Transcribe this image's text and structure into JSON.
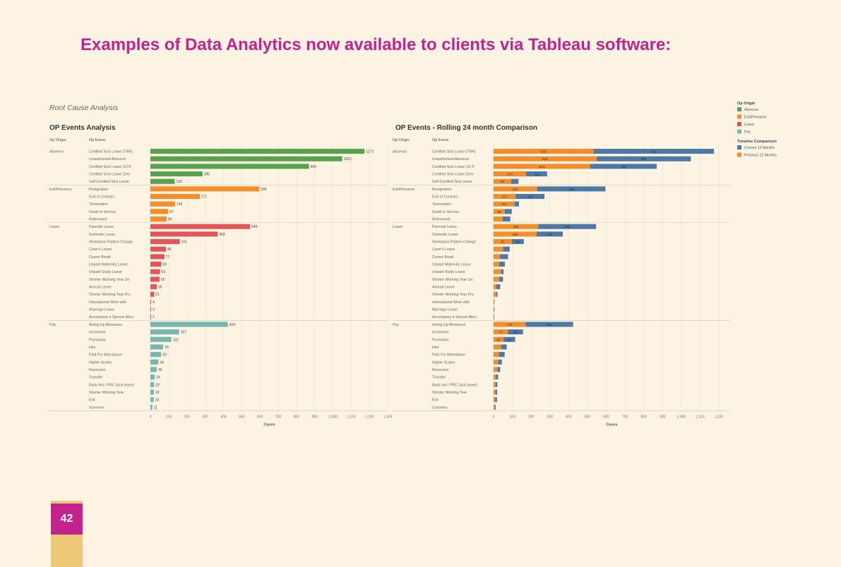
{
  "page": {
    "heading": "Examples of Data Analytics now available to clients via Tableau software:",
    "page_number": "42"
  },
  "dashboard": {
    "title": "Root Cause Analysis",
    "colors": {
      "Absence": "#59a14f",
      "Exit/Pensions": "#f28e2b",
      "Leave": "#e15759",
      "Pay": "#76b7b2",
      "current": "#4e79a7",
      "previous": "#f28e2b"
    }
  },
  "legends": [
    {
      "title": "Op Origin",
      "items": [
        {
          "label": "Absence",
          "color": "#59a14f"
        },
        {
          "label": "Exit/Pensions",
          "color": "#f28e2b"
        },
        {
          "label": "Leave",
          "color": "#e15759"
        },
        {
          "label": "Pay",
          "color": "#76b7b2"
        }
      ]
    },
    {
      "title": "Timeline Comparison",
      "items": [
        {
          "label": "Current 12 Months",
          "color": "#4e79a7"
        },
        {
          "label": "Previous 12 Months",
          "color": "#f28e2b"
        }
      ]
    }
  ],
  "chart_data": [
    {
      "type": "bar",
      "orientation": "horizontal",
      "title": "OP Events Analysis",
      "row_headers": [
        "Op Origin",
        "Op Event"
      ],
      "xlabel": "Cases",
      "xlim": [
        0,
        1300
      ],
      "xticks": [
        "0",
        "100",
        "200",
        "300",
        "400",
        "500",
        "600",
        "700",
        "800",
        "900",
        "1,000",
        "1,100",
        "1,200",
        "1,300"
      ],
      "groups": [
        {
          "origin": "Absence",
          "events": [
            {
              "label": "Certified Sick Leave (TRR)",
              "value": 1173
            },
            {
              "label": "Unauthorised Absence",
              "value": 1051
            },
            {
              "label": "Certified Sick Leave 1/2 P.",
              "value": 869
            },
            {
              "label": "Certified Sick Leave Zero",
              "value": 285
            },
            {
              "label": "Self-Certified Sick Leave",
              "value": 133
            }
          ]
        },
        {
          "origin": "Exit/Pensions",
          "events": [
            {
              "label": "Resignation",
              "value": 596
            },
            {
              "label": "End of Contract",
              "value": 271
            },
            {
              "label": "Termination",
              "value": 135
            },
            {
              "label": "Death in Service",
              "value": 97
            },
            {
              "label": "Retirement",
              "value": 89
            }
          ]
        },
        {
          "origin": "Leave",
          "events": [
            {
              "label": "Parental Leave",
              "value": 546
            },
            {
              "label": "Domestic Leave",
              "value": 369
            },
            {
              "label": "Workplace Pattern Change",
              "value": 161
            },
            {
              "label": "Carer's Leave",
              "value": 86
            },
            {
              "label": "Career Break",
              "value": 77
            },
            {
              "label": "Unpaid Maternity Leave",
              "value": 60
            },
            {
              "label": "Unpaid Study Leave",
              "value": 53
            },
            {
              "label": "Shorter Working Year Un.",
              "value": 50
            },
            {
              "label": "Annual Leave",
              "value": 35
            },
            {
              "label": "Shorter Working Year Pro.",
              "value": 21
            },
            {
              "label": "International Work with",
              "value": 4
            },
            {
              "label": "Marriage Leave",
              "value": 3
            },
            {
              "label": "Accompany a Spouse Abro.",
              "value": 2
            }
          ]
        },
        {
          "origin": "Pay",
          "events": [
            {
              "label": "Acting Up Allowance",
              "value": 424
            },
            {
              "label": "Increment",
              "value": 157
            },
            {
              "label": "Promotion",
              "value": 115
            },
            {
              "label": "Hire",
              "value": 70
            },
            {
              "label": "Paid For Attendance",
              "value": 59
            },
            {
              "label": "Higher Scales",
              "value": 44
            },
            {
              "label": "Reversion",
              "value": 35
            },
            {
              "label": "Transfer",
              "value": 24
            },
            {
              "label": "Bank Hol / PRC (sick leave)",
              "value": 20
            },
            {
              "label": "Shorter Working Year",
              "value": 19
            },
            {
              "label": "Exit",
              "value": 18
            },
            {
              "label": "Schemes",
              "value": 11
            }
          ]
        }
      ]
    },
    {
      "type": "bar",
      "orientation": "horizontal",
      "stacked": true,
      "title": "OP Events - Rolling 24 month Comparison",
      "row_headers": [
        "Op Origin",
        "Op Event"
      ],
      "xlabel": "Cases",
      "xlim": [
        0,
        1250
      ],
      "xticks": [
        "0",
        "100",
        "200",
        "300",
        "400",
        "500",
        "600",
        "700",
        "800",
        "900",
        "1,000",
        "1,100",
        "1,200"
      ],
      "series": [
        {
          "name": "Previous 12 Months"
        },
        {
          "name": "Current 12 Months"
        }
      ],
      "groups": [
        {
          "origin": "Absence",
          "events": [
            {
              "label": "Certified Sick Leave (TRR)",
              "values": [
                533,
                641
              ]
            },
            {
              "label": "Unauthorised Absence",
              "values": [
                549,
                502
              ]
            },
            {
              "label": "Certified Sick Leave 1/2 P.",
              "values": [
                514,
                355
              ]
            },
            {
              "label": "Certified Sick Leave Zero",
              "values": [
                173,
                112
              ]
            },
            {
              "label": "Self-Certified Sick Leave",
              "values": [
                94,
                39
              ]
            }
          ]
        },
        {
          "origin": "Exit/Pensions",
          "events": [
            {
              "label": "Resignation",
              "values": [
                232,
                364
              ]
            },
            {
              "label": "End of Contract",
              "values": [
                117,
                154
              ]
            },
            {
              "label": "Termination",
              "values": [
                112,
                23
              ]
            },
            {
              "label": "Death in Service",
              "values": [
                60,
                37
              ]
            },
            {
              "label": "Retirement",
              "values": [
                48,
                41
              ]
            }
          ]
        },
        {
          "origin": "Leave",
          "events": [
            {
              "label": "Parental Leave",
              "values": [
                238,
                308
              ]
            },
            {
              "label": "Domestic Leave",
              "values": [
                229,
                140
              ]
            },
            {
              "label": "Workplace Pattern Change",
              "values": [
                97,
                64
              ]
            },
            {
              "label": "Carer's Leave",
              "values": [
                51,
                35
              ]
            },
            {
              "label": "Career Break",
              "values": [
                34,
                43
              ]
            },
            {
              "label": "Unpaid Maternity Leave",
              "values": [
                30,
                30
              ]
            },
            {
              "label": "Unpaid Study Leave",
              "values": [
                41,
                12
              ]
            },
            {
              "label": "Shorter Working Year Un.",
              "values": [
                30,
                20
              ]
            },
            {
              "label": "Annual Leave",
              "values": [
                15,
                20
              ]
            },
            {
              "label": "Shorter Working Year Pro.",
              "values": [
                15,
                6
              ]
            },
            {
              "label": "International Work with",
              "values": [
                2,
                2
              ]
            },
            {
              "label": "Marriage Leave",
              "values": [
                2,
                1
              ]
            },
            {
              "label": "Accompany a Spouse Abro.",
              "values": [
                1,
                1
              ]
            }
          ]
        },
        {
          "origin": "Pay",
          "events": [
            {
              "label": "Acting Up Allowance",
              "values": [
                170,
                254
              ]
            },
            {
              "label": "Increment",
              "values": [
                77,
                80
              ]
            },
            {
              "label": "Promotion",
              "values": [
                53,
                62
              ]
            },
            {
              "label": "Hire",
              "values": [
                40,
                30
              ]
            },
            {
              "label": "Paid For Attendance",
              "values": [
                30,
                29
              ]
            },
            {
              "label": "Higher Scales",
              "values": [
                24,
                20
              ]
            },
            {
              "label": "Reversion",
              "values": [
                20,
                15
              ]
            },
            {
              "label": "Transfer",
              "values": [
                12,
                12
              ]
            },
            {
              "label": "Bank Hol / PRC (sick leave)",
              "values": [
                10,
                10
              ]
            },
            {
              "label": "Shorter Working Year",
              "values": [
                10,
                9
              ]
            },
            {
              "label": "Exit",
              "values": [
                9,
                9
              ]
            },
            {
              "label": "Schemes",
              "values": [
                6,
                5
              ]
            }
          ]
        }
      ]
    }
  ]
}
